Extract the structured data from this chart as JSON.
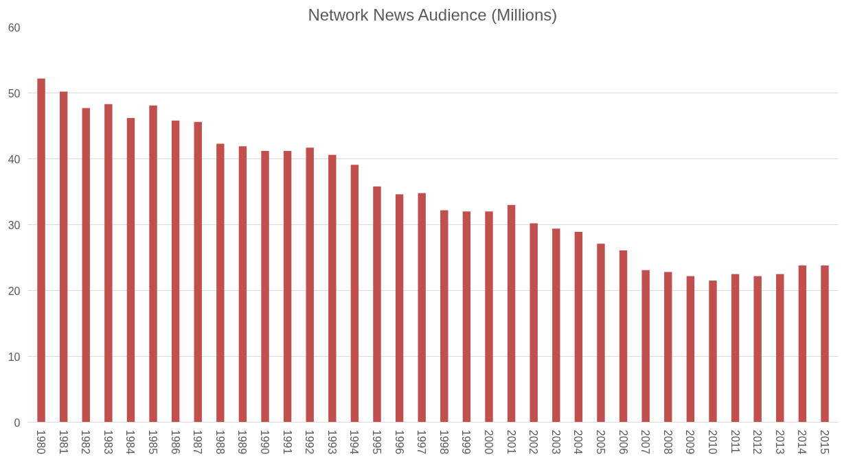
{
  "chart_data": {
    "type": "bar",
    "title": "Network News Audience (Millions)",
    "categories": [
      "1980",
      "1981",
      "1982",
      "1983",
      "1984",
      "1985",
      "1986",
      "1987",
      "1988",
      "1989",
      "1990",
      "1991",
      "1992",
      "1993",
      "1994",
      "1995",
      "1996",
      "1997",
      "1998",
      "1999",
      "2000",
      "2001",
      "2002",
      "2003",
      "2004",
      "2005",
      "2006",
      "2007",
      "2008",
      "2009",
      "2010",
      "2011",
      "2012",
      "2013",
      "2014",
      "2015"
    ],
    "values": [
      52.2,
      50.2,
      47.7,
      48.3,
      46.2,
      48.1,
      45.8,
      45.6,
      42.3,
      41.9,
      41.2,
      41.2,
      41.7,
      40.6,
      39.1,
      35.8,
      34.6,
      34.8,
      32.2,
      32.0,
      32.0,
      33.0,
      30.2,
      29.4,
      28.9,
      27.1,
      26.1,
      23.1,
      22.8,
      22.2,
      21.5,
      22.5,
      22.2,
      22.5,
      23.8,
      23.8
    ],
    "color": "#c0504d",
    "ylim": [
      0,
      60
    ],
    "yticks": [
      0,
      10,
      20,
      30,
      40,
      50,
      60
    ],
    "grid": "y"
  }
}
